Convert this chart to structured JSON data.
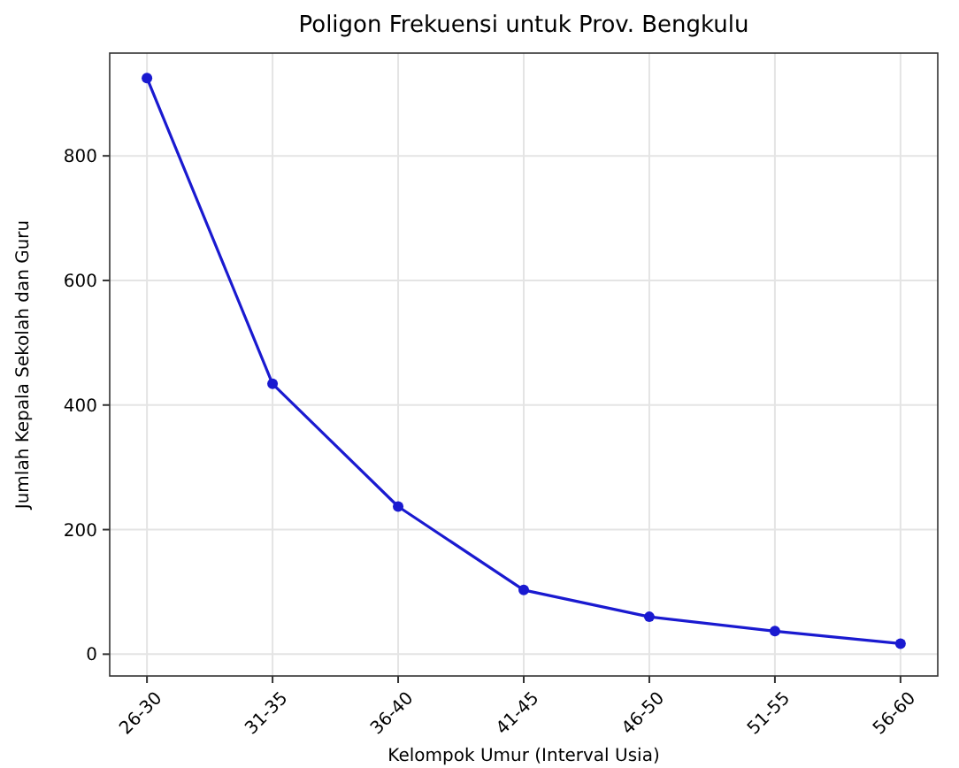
{
  "chart_data": {
    "type": "line",
    "title": "Poligon Frekuensi untuk Prov. Bengkulu",
    "xlabel": "Kelompok Umur (Interval Usia)",
    "ylabel": "Jumlah Kepala Sekolah dan Guru",
    "categories": [
      "26-30",
      "31-35",
      "36-40",
      "41-45",
      "46-50",
      "51-55",
      "56-60"
    ],
    "series": [
      {
        "color": "#1a1ad0",
        "values": [
          925,
          434,
          237,
          103,
          60,
          37,
          17
        ]
      }
    ],
    "ylim": [
      -35,
      965
    ],
    "yticks": [
      0,
      200,
      400,
      600,
      800
    ],
    "grid": true,
    "marker": "circle",
    "line_style": "solid"
  }
}
